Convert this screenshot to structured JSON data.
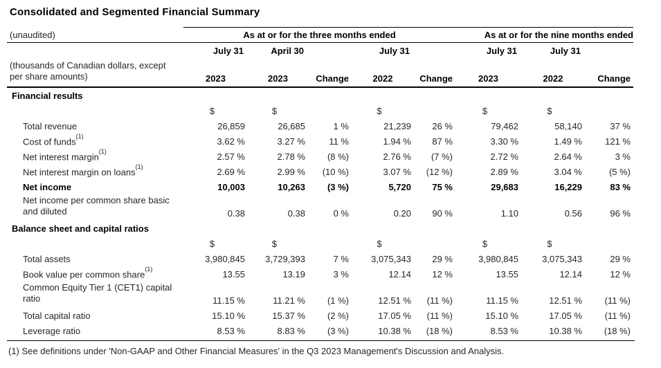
{
  "page": {
    "title": "Consolidated and Segmented Financial Summary",
    "footnote": "(1) See definitions under 'Non-GAAP and Other Financial Measures' in the Q3 2023 Management's Discussion and Analysis."
  },
  "table": {
    "unaudited_label": "(unaudited)",
    "group_headers": {
      "three_months": "As at or for the three months ended",
      "nine_months": "As at or for the nine months ended"
    },
    "left_note": {
      "line1": "(thousands of Canadian dollars, except",
      "line2": "per share amounts)"
    },
    "month_headers": [
      "July 31",
      "April 30",
      "",
      "July 31",
      "",
      "July 31",
      "July 31",
      ""
    ],
    "period_headers": [
      "2023",
      "2023",
      "Change",
      "2022",
      "Change",
      "2023",
      "2022",
      "Change"
    ],
    "rows": [
      {
        "type": "section",
        "label": "Financial results"
      },
      {
        "type": "currency",
        "values": [
          "$",
          "$",
          "",
          "$",
          "",
          "$",
          "$",
          ""
        ]
      },
      {
        "type": "data",
        "label": "Total revenue",
        "values": [
          "26,859",
          "26,685",
          "1 %",
          "21,239",
          "26 %",
          "79,462",
          "58,140",
          "37 %"
        ]
      },
      {
        "type": "data",
        "label": "Cost of funds",
        "sup": "(1)",
        "values": [
          "3.62 %",
          "3.27 %",
          "11 %",
          "1.94 %",
          "87 %",
          "3.30 %",
          "1.49 %",
          "121 %"
        ]
      },
      {
        "type": "data",
        "label": "Net interest margin",
        "sup": "(1)",
        "values": [
          "2.57 %",
          "2.78 %",
          "(8 %)",
          "2.76 %",
          "(7 %)",
          "2.72 %",
          "2.64 %",
          "3 %"
        ]
      },
      {
        "type": "data",
        "label": "Net interest margin on loans",
        "sup": "(1)",
        "values": [
          "2.69 %",
          "2.99 %",
          "(10 %)",
          "3.07 %",
          "(12 %)",
          "2.89 %",
          "3.04 %",
          "(5 %)"
        ]
      },
      {
        "type": "data",
        "label": "Net income",
        "bold": true,
        "values": [
          "10,003",
          "10,263",
          "(3 %)",
          "5,720",
          "75 %",
          "29,683",
          "16,229",
          "83 %"
        ]
      },
      {
        "type": "data",
        "label": "Net income per common share basic",
        "label2": "and diluted",
        "values": [
          "0.38",
          "0.38",
          "0 %",
          "0.20",
          "90 %",
          "1.10",
          "0.56",
          "96 %"
        ]
      },
      {
        "type": "section",
        "label": "Balance sheet and capital ratios"
      },
      {
        "type": "currency",
        "values": [
          "$",
          "$",
          "",
          "$",
          "",
          "$",
          "$",
          ""
        ]
      },
      {
        "type": "data",
        "label": "Total assets",
        "values": [
          "3,980,845",
          "3,729,393",
          "7 %",
          "3,075,343",
          "29 %",
          "3,980,845",
          "3,075,343",
          "29 %"
        ]
      },
      {
        "type": "data",
        "label": "Book value per common share",
        "sup": "(1)",
        "values": [
          "13.55",
          "13.19",
          "3 %",
          "12.14",
          "12 %",
          "13.55",
          "12.14",
          "12 %"
        ]
      },
      {
        "type": "data",
        "label": "Common Equity Tier 1 (CET1) capital",
        "label2": "ratio",
        "values": [
          "11.15 %",
          "11.21 %",
          "(1 %)",
          "12.51 %",
          "(11 %)",
          "11.15 %",
          "12.51 %",
          "(11 %)"
        ]
      },
      {
        "type": "data",
        "label": "Total capital ratio",
        "values": [
          "15.10 %",
          "15.37 %",
          "(2 %)",
          "17.05 %",
          "(11 %)",
          "15.10 %",
          "17.05 %",
          "(11 %)"
        ]
      },
      {
        "type": "data",
        "label": "Leverage ratio",
        "values": [
          "8.53 %",
          "8.83 %",
          "(3 %)",
          "10.38 %",
          "(18 %)",
          "8.53 %",
          "10.38 %",
          "(18 %)"
        ]
      }
    ]
  }
}
